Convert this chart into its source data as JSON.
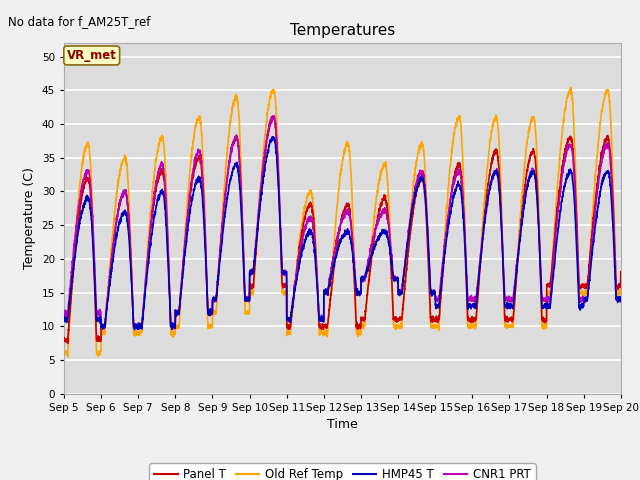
{
  "title": "Temperatures",
  "xlabel": "Time",
  "ylabel": "Temperature (C)",
  "ylim": [
    0,
    52
  ],
  "yticks": [
    0,
    5,
    10,
    15,
    20,
    25,
    30,
    35,
    40,
    45,
    50
  ],
  "annotation_text": "No data for f_AM25T_ref",
  "vr_met_label": "VR_met",
  "legend_labels": [
    "Panel T",
    "Old Ref Temp",
    "HMP45 T",
    "CNR1 PRT"
  ],
  "colors": {
    "panel_t": "#CC0000",
    "old_ref": "#FFA500",
    "hmp45": "#0000BB",
    "cnr1": "#BB00BB"
  },
  "line_width": 1.2,
  "background_color": "#DCDCDC",
  "fig_background": "#F0F0F0",
  "start_day": 5,
  "end_day": 20,
  "n_points": 3000
}
